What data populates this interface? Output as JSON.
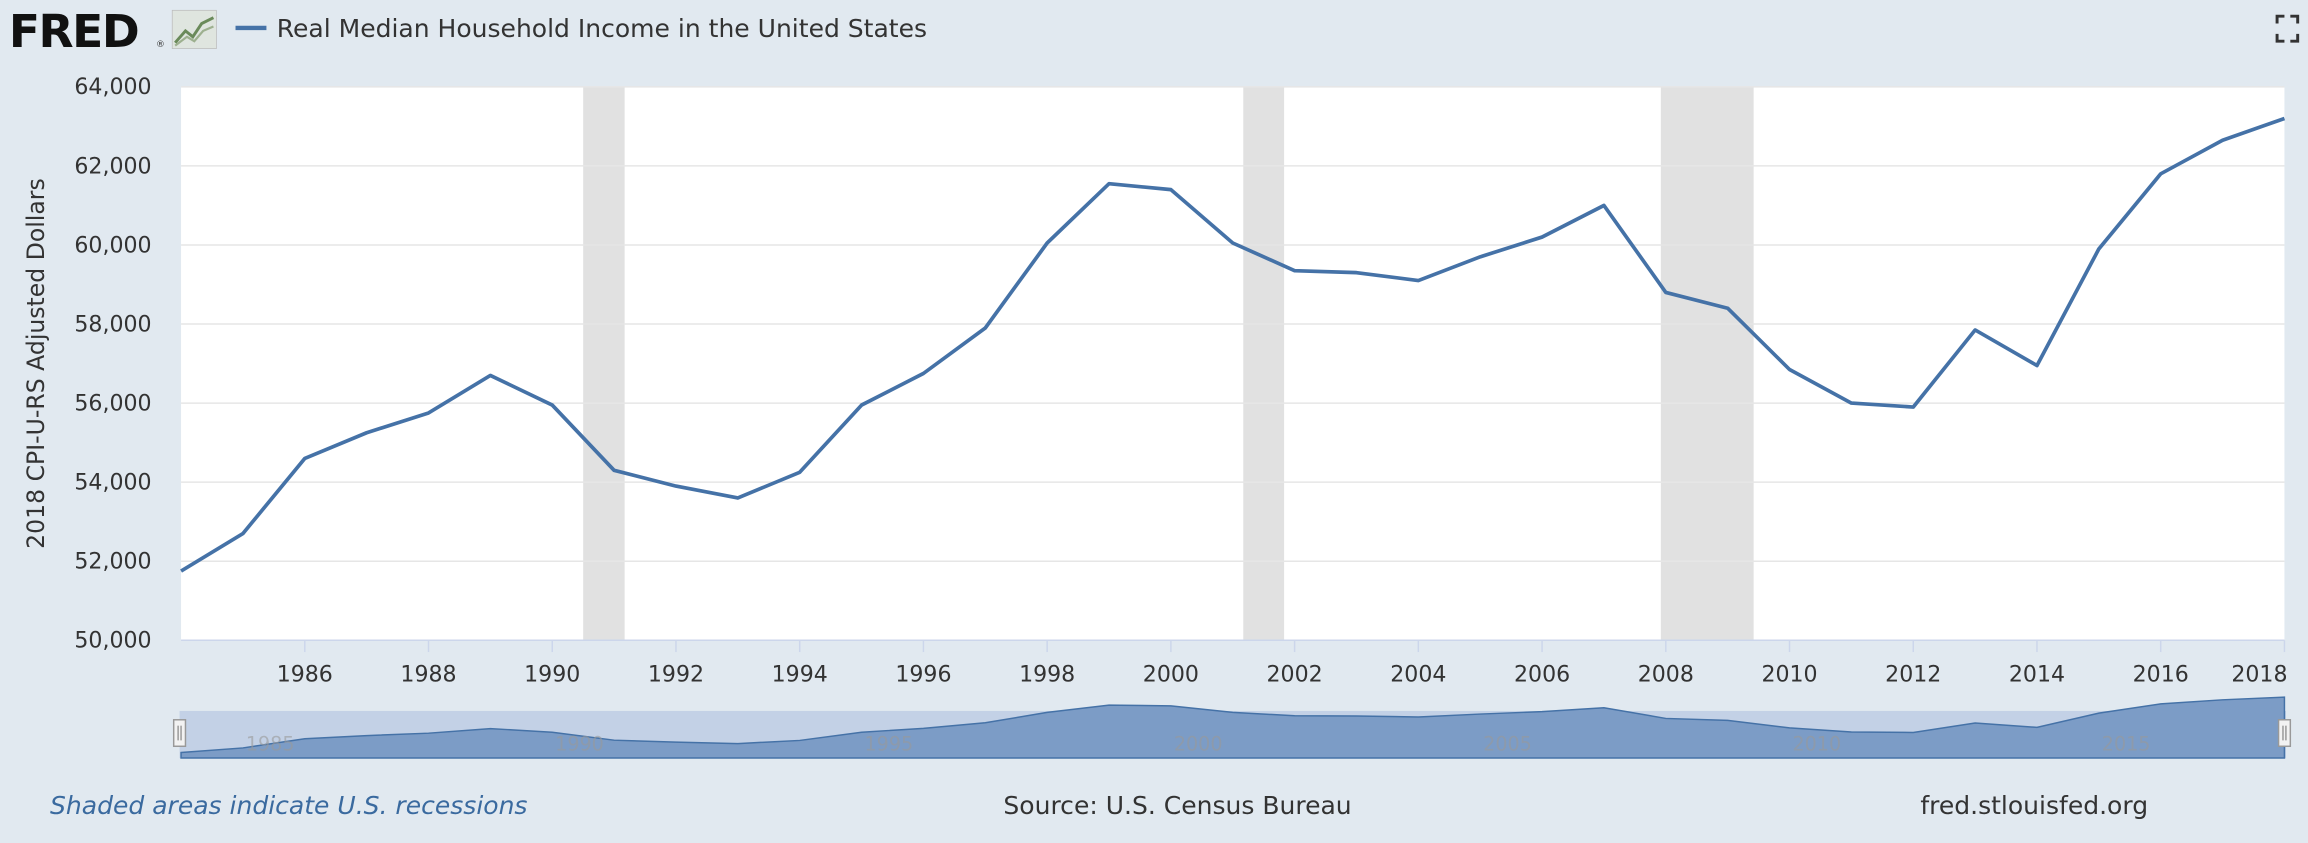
{
  "logo": "FRED",
  "logo_mark": "®",
  "chart_data": {
    "type": "line",
    "y_label": "2018 CPI-U-RS Adjusted Dollars",
    "x": [
      1984,
      1985,
      1986,
      1987,
      1988,
      1989,
      1990,
      1991,
      1992,
      1993,
      1994,
      1995,
      1996,
      1997,
      1998,
      1999,
      2000,
      2001,
      2002,
      2003,
      2004,
      2005,
      2006,
      2007,
      2008,
      2009,
      2010,
      2011,
      2012,
      2013,
      2014,
      2015,
      2016,
      2017,
      2018
    ],
    "series": [
      {
        "name": "Real Median Household Income in the United States",
        "color": "#4572a7",
        "values": [
          51750,
          52700,
          54600,
          55250,
          55750,
          56700,
          55950,
          54300,
          53900,
          53600,
          54250,
          55950,
          56750,
          57900,
          60050,
          61550,
          61400,
          60050,
          59350,
          59300,
          59100,
          59700,
          60200,
          61000,
          58800,
          58400,
          56850,
          56000,
          55900,
          57850,
          56950,
          59900,
          61800,
          62650,
          63200
        ]
      }
    ],
    "xlim": [
      1984,
      2018
    ],
    "xticks": [
      1986,
      1988,
      1990,
      1992,
      1994,
      1996,
      1998,
      2000,
      2002,
      2004,
      2006,
      2008,
      2010,
      2012,
      2014,
      2016,
      2018
    ],
    "ylim": [
      50000,
      64000
    ],
    "yticks": [
      {
        "value": 50000,
        "label": "50,000"
      },
      {
        "value": 52000,
        "label": "52,000"
      },
      {
        "value": 54000,
        "label": "54,000"
      },
      {
        "value": 56000,
        "label": "56,000"
      },
      {
        "value": 58000,
        "label": "58,000"
      },
      {
        "value": 60000,
        "label": "60,000"
      },
      {
        "value": 62000,
        "label": "62,000"
      },
      {
        "value": 64000,
        "label": "64,000"
      }
    ],
    "grid": true,
    "recessions": [
      [
        1990.5,
        1991.17
      ],
      [
        2001.17,
        2001.83
      ],
      [
        2007.92,
        2009.42
      ]
    ],
    "navigator_xticks": [
      1985,
      1990,
      1995,
      2000,
      2005,
      2010,
      2015
    ],
    "recession_note": "Shaded areas indicate U.S. recessions",
    "source": "Source: U.S. Census Bureau",
    "site": "fred.stlouisfed.org"
  }
}
